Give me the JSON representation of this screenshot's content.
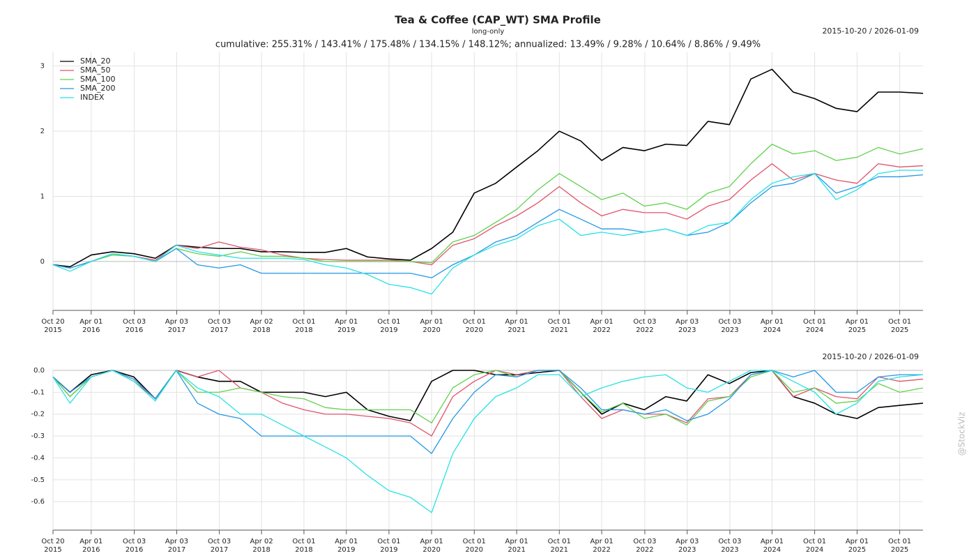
{
  "chart_data": [
    {
      "type": "line",
      "title": "Tea & Coffee (CAP_WT) SMA Profile",
      "subtitle": "long-only",
      "date_range": "2015-10-20 / 2026-01-09",
      "annotation": "cumulative: 255.31% / 143.41% / 175.48% / 134.15% / 148.12%; annualized: 13.49% / 9.28% / 10.64% / 8.86% / 9.49%",
      "legend": "top-left",
      "grid": true,
      "x": [
        "2015-10-20",
        "2016-01-01",
        "2016-04-01",
        "2016-07-01",
        "2016-10-01",
        "2017-01-01",
        "2017-04-01",
        "2017-07-01",
        "2017-10-01",
        "2018-01-01",
        "2018-04-01",
        "2018-07-01",
        "2018-10-01",
        "2019-01-01",
        "2019-04-01",
        "2019-07-01",
        "2019-10-01",
        "2020-01-01",
        "2020-04-01",
        "2020-07-01",
        "2020-10-01",
        "2021-01-01",
        "2021-04-01",
        "2021-07-01",
        "2021-10-01",
        "2022-01-01",
        "2022-04-01",
        "2022-07-01",
        "2022-10-01",
        "2023-01-01",
        "2023-04-01",
        "2023-07-01",
        "2023-10-01",
        "2024-01-01",
        "2024-04-01",
        "2024-07-01",
        "2024-10-01",
        "2025-01-01",
        "2025-04-01",
        "2025-07-01",
        "2025-10-01",
        "2026-01-09"
      ],
      "xlim": [
        "2015-10-20",
        "2026-01-09"
      ],
      "xticks": [
        {
          "value": "2015-10-20",
          "label": [
            "Oct 20",
            "2015"
          ]
        },
        {
          "value": "2016-04-01",
          "label": [
            "Apr 01",
            "2016"
          ]
        },
        {
          "value": "2016-10-03",
          "label": [
            "Oct 03",
            "2016"
          ]
        },
        {
          "value": "2017-04-03",
          "label": [
            "Apr 03",
            "2017"
          ]
        },
        {
          "value": "2017-10-03",
          "label": [
            "Oct 03",
            "2017"
          ]
        },
        {
          "value": "2018-04-02",
          "label": [
            "Apr 02",
            "2018"
          ]
        },
        {
          "value": "2018-10-01",
          "label": [
            "Oct 01",
            "2018"
          ]
        },
        {
          "value": "2019-04-01",
          "label": [
            "Apr 01",
            "2019"
          ]
        },
        {
          "value": "2019-10-01",
          "label": [
            "Oct 01",
            "2019"
          ]
        },
        {
          "value": "2020-04-01",
          "label": [
            "Apr 01",
            "2020"
          ]
        },
        {
          "value": "2020-10-01",
          "label": [
            "Oct 01",
            "2020"
          ]
        },
        {
          "value": "2021-04-01",
          "label": [
            "Apr 01",
            "2021"
          ]
        },
        {
          "value": "2021-10-01",
          "label": [
            "Oct 01",
            "2021"
          ]
        },
        {
          "value": "2022-04-01",
          "label": [
            "Apr 01",
            "2022"
          ]
        },
        {
          "value": "2022-10-03",
          "label": [
            "Oct 03",
            "2022"
          ]
        },
        {
          "value": "2023-04-03",
          "label": [
            "Apr 03",
            "2023"
          ]
        },
        {
          "value": "2023-10-03",
          "label": [
            "Oct 03",
            "2023"
          ]
        },
        {
          "value": "2024-04-01",
          "label": [
            "Apr 01",
            "2024"
          ]
        },
        {
          "value": "2024-10-01",
          "label": [
            "Oct 01",
            "2024"
          ]
        },
        {
          "value": "2025-04-01",
          "label": [
            "Apr 01",
            "2025"
          ]
        },
        {
          "value": "2025-10-01",
          "label": [
            "Oct 01",
            "2025"
          ]
        }
      ],
      "ylim": [
        -0.75,
        3.21
      ],
      "yticks": [
        0,
        1,
        2,
        3
      ],
      "series": [
        {
          "name": "SMA_20",
          "color": "#000000",
          "values": [
            -0.05,
            -0.08,
            0.1,
            0.15,
            0.12,
            0.05,
            0.25,
            0.22,
            0.2,
            0.2,
            0.15,
            0.15,
            0.14,
            0.14,
            0.2,
            0.07,
            0.04,
            0.02,
            0.2,
            0.45,
            1.05,
            1.2,
            1.45,
            1.7,
            2.0,
            1.85,
            1.55,
            1.75,
            1.7,
            1.8,
            1.78,
            2.15,
            2.1,
            2.8,
            2.95,
            2.6,
            2.5,
            2.35,
            2.3,
            2.6,
            2.6,
            2.58
          ]
        },
        {
          "name": "SMA_50",
          "color": "#df536b",
          "values": [
            -0.05,
            -0.1,
            0.0,
            0.12,
            0.08,
            0.02,
            0.25,
            0.2,
            0.3,
            0.22,
            0.18,
            0.1,
            0.05,
            0.03,
            0.02,
            0.02,
            0.02,
            0.0,
            -0.05,
            0.25,
            0.35,
            0.55,
            0.7,
            0.9,
            1.15,
            0.9,
            0.7,
            0.8,
            0.75,
            0.75,
            0.65,
            0.85,
            0.95,
            1.25,
            1.5,
            1.25,
            1.35,
            1.25,
            1.2,
            1.5,
            1.45,
            1.47
          ]
        },
        {
          "name": "SMA_100",
          "color": "#61d04f",
          "values": [
            -0.05,
            -0.1,
            0.0,
            0.1,
            0.08,
            0.0,
            0.2,
            0.12,
            0.08,
            0.15,
            0.08,
            0.08,
            0.05,
            0.0,
            0.0,
            0.0,
            0.0,
            0.0,
            -0.02,
            0.3,
            0.4,
            0.6,
            0.8,
            1.1,
            1.35,
            1.15,
            0.95,
            1.05,
            0.85,
            0.9,
            0.8,
            1.05,
            1.15,
            1.5,
            1.8,
            1.65,
            1.7,
            1.55,
            1.6,
            1.75,
            1.65,
            1.73
          ]
        },
        {
          "name": "SMA_200",
          "color": "#2297e6",
          "values": [
            -0.05,
            -0.1,
            0.0,
            0.12,
            0.08,
            0.0,
            0.2,
            -0.05,
            -0.1,
            -0.05,
            -0.18,
            -0.18,
            -0.18,
            -0.18,
            -0.18,
            -0.18,
            -0.18,
            -0.18,
            -0.25,
            -0.05,
            0.1,
            0.3,
            0.4,
            0.6,
            0.8,
            0.65,
            0.5,
            0.5,
            0.45,
            0.5,
            0.4,
            0.45,
            0.6,
            0.9,
            1.15,
            1.2,
            1.35,
            1.05,
            1.15,
            1.3,
            1.3,
            1.33
          ]
        },
        {
          "name": "INDEX",
          "color": "#28e2e5",
          "values": [
            -0.05,
            -0.15,
            0.0,
            0.12,
            0.08,
            0.0,
            0.25,
            0.15,
            0.1,
            0.05,
            0.05,
            0.05,
            0.03,
            -0.05,
            -0.1,
            -0.2,
            -0.35,
            -0.4,
            -0.5,
            -0.1,
            0.1,
            0.25,
            0.35,
            0.55,
            0.65,
            0.4,
            0.45,
            0.4,
            0.45,
            0.5,
            0.4,
            0.55,
            0.6,
            0.95,
            1.2,
            1.3,
            1.35,
            0.95,
            1.1,
            1.35,
            1.4,
            1.4
          ]
        }
      ]
    },
    {
      "type": "line",
      "date_range": "2015-10-20 / 2026-01-09",
      "grid": true,
      "x": [
        "2015-10-20",
        "2016-01-01",
        "2016-04-01",
        "2016-07-01",
        "2016-10-01",
        "2017-01-01",
        "2017-04-01",
        "2017-07-01",
        "2017-10-01",
        "2018-01-01",
        "2018-04-01",
        "2018-07-01",
        "2018-10-01",
        "2019-01-01",
        "2019-04-01",
        "2019-07-01",
        "2019-10-01",
        "2020-01-01",
        "2020-04-01",
        "2020-07-01",
        "2020-10-01",
        "2021-01-01",
        "2021-04-01",
        "2021-07-01",
        "2021-10-01",
        "2022-01-01",
        "2022-04-01",
        "2022-07-01",
        "2022-10-01",
        "2023-01-01",
        "2023-04-01",
        "2023-07-01",
        "2023-10-01",
        "2024-01-01",
        "2024-04-01",
        "2024-07-01",
        "2024-10-01",
        "2025-01-01",
        "2025-04-01",
        "2025-07-01",
        "2025-10-01",
        "2026-01-09"
      ],
      "xlim": [
        "2015-10-20",
        "2026-01-09"
      ],
      "xticks": [
        {
          "value": "2015-10-20",
          "label": [
            "Oct 20",
            "2015"
          ]
        },
        {
          "value": "2016-04-01",
          "label": [
            "Apr 01",
            "2016"
          ]
        },
        {
          "value": "2016-10-03",
          "label": [
            "Oct 03",
            "2016"
          ]
        },
        {
          "value": "2017-04-03",
          "label": [
            "Apr 03",
            "2017"
          ]
        },
        {
          "value": "2017-10-03",
          "label": [
            "Oct 03",
            "2017"
          ]
        },
        {
          "value": "2018-04-02",
          "label": [
            "Apr 02",
            "2018"
          ]
        },
        {
          "value": "2018-10-01",
          "label": [
            "Oct 01",
            "2018"
          ]
        },
        {
          "value": "2019-04-01",
          "label": [
            "Apr 01",
            "2019"
          ]
        },
        {
          "value": "2019-10-01",
          "label": [
            "Oct 01",
            "2019"
          ]
        },
        {
          "value": "2020-04-01",
          "label": [
            "Apr 01",
            "2020"
          ]
        },
        {
          "value": "2020-10-01",
          "label": [
            "Oct 01",
            "2020"
          ]
        },
        {
          "value": "2021-04-01",
          "label": [
            "Apr 01",
            "2021"
          ]
        },
        {
          "value": "2021-10-01",
          "label": [
            "Oct 01",
            "2021"
          ]
        },
        {
          "value": "2022-04-01",
          "label": [
            "Apr 01",
            "2022"
          ]
        },
        {
          "value": "2022-10-03",
          "label": [
            "Oct 03",
            "2022"
          ]
        },
        {
          "value": "2023-04-03",
          "label": [
            "Apr 03",
            "2023"
          ]
        },
        {
          "value": "2023-10-03",
          "label": [
            "Oct 03",
            "2023"
          ]
        },
        {
          "value": "2024-04-01",
          "label": [
            "Apr 01",
            "2024"
          ]
        },
        {
          "value": "2024-10-01",
          "label": [
            "Oct 01",
            "2024"
          ]
        },
        {
          "value": "2025-04-01",
          "label": [
            "Apr 01",
            "2025"
          ]
        },
        {
          "value": "2025-10-01",
          "label": [
            "Oct 01",
            "2025"
          ]
        }
      ],
      "ylim": [
        -0.73,
        0
      ],
      "yticks": [
        {
          "value": 0,
          "label": "0.0"
        },
        -0.1,
        -0.2,
        -0.3,
        -0.4,
        -0.5,
        -0.6
      ],
      "series": [
        {
          "color": "#000000",
          "values": [
            -0.03,
            -0.1,
            -0.02,
            0.0,
            -0.03,
            -0.13,
            0.0,
            -0.03,
            -0.05,
            -0.05,
            -0.1,
            -0.1,
            -0.1,
            -0.12,
            -0.1,
            -0.18,
            -0.21,
            -0.23,
            -0.05,
            0.0,
            0.0,
            -0.02,
            -0.02,
            -0.01,
            0.0,
            -0.1,
            -0.2,
            -0.15,
            -0.18,
            -0.12,
            -0.14,
            -0.02,
            -0.06,
            -0.01,
            0.0,
            -0.12,
            -0.15,
            -0.2,
            -0.22,
            -0.17,
            -0.16,
            -0.15
          ]
        },
        {
          "color": "#df536b",
          "values": [
            -0.03,
            -0.12,
            -0.03,
            0.0,
            -0.05,
            -0.13,
            0.0,
            -0.03,
            0.0,
            -0.08,
            -0.1,
            -0.15,
            -0.18,
            -0.2,
            -0.2,
            -0.21,
            -0.22,
            -0.24,
            -0.3,
            -0.12,
            -0.05,
            0.0,
            -0.02,
            0.0,
            0.0,
            -0.12,
            -0.22,
            -0.18,
            -0.2,
            -0.2,
            -0.24,
            -0.13,
            -0.12,
            -0.02,
            0.0,
            -0.12,
            -0.08,
            -0.12,
            -0.13,
            -0.03,
            -0.05,
            -0.04
          ]
        },
        {
          "color": "#61d04f",
          "values": [
            -0.03,
            -0.12,
            -0.03,
            0.0,
            -0.04,
            -0.13,
            0.0,
            -0.1,
            -0.1,
            -0.08,
            -0.1,
            -0.12,
            -0.13,
            -0.17,
            -0.18,
            -0.18,
            -0.18,
            -0.18,
            -0.24,
            -0.08,
            -0.02,
            0.0,
            -0.03,
            0.0,
            0.0,
            -0.1,
            -0.19,
            -0.15,
            -0.22,
            -0.2,
            -0.25,
            -0.14,
            -0.12,
            -0.03,
            0.0,
            -0.1,
            -0.08,
            -0.15,
            -0.14,
            -0.06,
            -0.1,
            -0.08
          ]
        },
        {
          "color": "#2297e6",
          "values": [
            -0.03,
            -0.1,
            -0.03,
            0.0,
            -0.04,
            -0.13,
            0.0,
            -0.15,
            -0.2,
            -0.22,
            -0.3,
            -0.3,
            -0.3,
            -0.3,
            -0.3,
            -0.3,
            -0.3,
            -0.3,
            -0.38,
            -0.22,
            -0.1,
            -0.02,
            -0.03,
            0.0,
            0.0,
            -0.08,
            -0.18,
            -0.18,
            -0.2,
            -0.18,
            -0.23,
            -0.2,
            -0.13,
            -0.02,
            0.0,
            -0.03,
            0.0,
            -0.1,
            -0.1,
            -0.03,
            -0.02,
            -0.02
          ]
        },
        {
          "color": "#28e2e5",
          "values": [
            -0.03,
            -0.15,
            -0.03,
            0.0,
            -0.05,
            -0.14,
            0.0,
            -0.08,
            -0.12,
            -0.2,
            -0.2,
            -0.25,
            -0.3,
            -0.35,
            -0.4,
            -0.48,
            -0.55,
            -0.58,
            -0.65,
            -0.38,
            -0.22,
            -0.12,
            -0.08,
            -0.02,
            -0.02,
            -0.12,
            -0.08,
            -0.05,
            -0.03,
            -0.02,
            -0.08,
            -0.1,
            -0.05,
            0.0,
            0.0,
            -0.05,
            -0.1,
            -0.2,
            -0.15,
            -0.05,
            -0.03,
            -0.02
          ]
        }
      ]
    }
  ],
  "watermark": "@StockViz"
}
